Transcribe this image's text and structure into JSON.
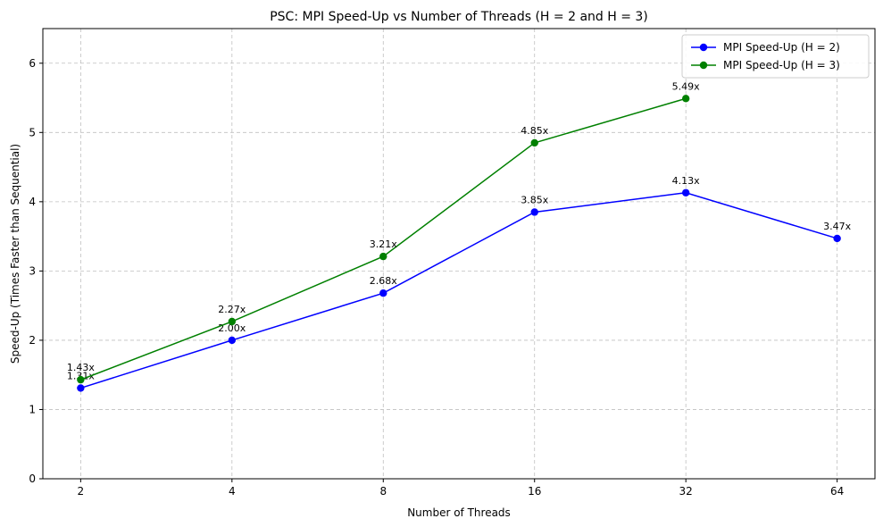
{
  "chart_data": {
    "type": "line",
    "title": "PSC: MPI Speed-Up vs Number of Threads (H = 2 and H = 3)",
    "xlabel": "Number of Threads",
    "ylabel": "Speed-Up (Times Faster than Sequential)",
    "x_scale": "log2",
    "x_ticks": [
      "2",
      "4",
      "8",
      "16",
      "32",
      "64"
    ],
    "y_ticks": [
      "0",
      "1",
      "2",
      "3",
      "4",
      "5",
      "6"
    ],
    "ylim": [
      0,
      6.5
    ],
    "grid": true,
    "legend_position": "top-right",
    "series": [
      {
        "name": "MPI Speed-Up (H = 2)",
        "color": "#0000ff",
        "x": [
          2,
          4,
          8,
          16,
          32,
          64
        ],
        "values": [
          1.31,
          2.0,
          2.68,
          3.85,
          4.13,
          3.47
        ],
        "labels": [
          "1.31x",
          "2.00x",
          "2.68x",
          "3.85x",
          "4.13x",
          "3.47x"
        ]
      },
      {
        "name": "MPI Speed-Up (H = 3)",
        "color": "#008000",
        "x": [
          2,
          4,
          8,
          16,
          32
        ],
        "values": [
          1.43,
          2.27,
          3.21,
          4.85,
          5.49
        ],
        "labels": [
          "1.43x",
          "2.27x",
          "3.21x",
          "4.85x",
          "5.49x"
        ]
      }
    ]
  }
}
